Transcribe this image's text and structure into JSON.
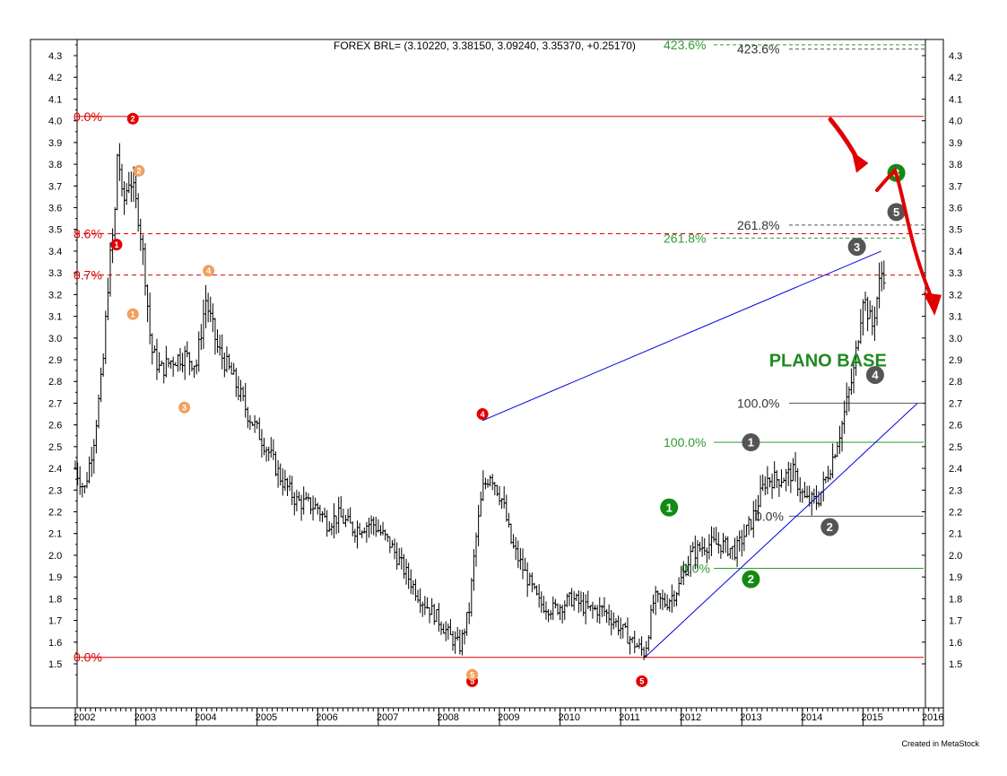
{
  "chart_data": {
    "type": "bar",
    "subtype": "ohlc",
    "title": "FOREX BRL= (3.10220, 3.38150, 3.09240, 3.35370, +0.25170)",
    "xlabel": "",
    "ylabel": "",
    "xlim": [
      2002.0,
      2016.3
    ],
    "ylim": [
      1.38,
      4.38
    ],
    "y_ticks": [
      "4.3",
      "4.2",
      "4.1",
      "4.0",
      "3.9",
      "3.8",
      "3.7",
      "3.6",
      "3.5",
      "3.4",
      "3.3",
      "3.2",
      "3.1",
      "3.0",
      "2.9",
      "2.8",
      "2.7",
      "2.6",
      "2.5",
      "2.4",
      "2.3",
      "2.2",
      "2.1",
      "2.0",
      "1.9",
      "1.8",
      "1.7",
      "1.6",
      "1.5"
    ],
    "x_ticks": [
      "2002",
      "2003",
      "2004",
      "2005",
      "2006",
      "2007",
      "2008",
      "2009",
      "2010",
      "2011",
      "2012",
      "2013",
      "2014",
      "2015",
      "2016"
    ],
    "grid": false,
    "series": [
      {
        "type": "ohlc_anchors",
        "points": [
          [
            2002.0,
            2.4
          ],
          [
            2002.15,
            2.3
          ],
          [
            2002.3,
            2.52
          ],
          [
            2002.45,
            2.85
          ],
          [
            2002.55,
            3.3
          ],
          [
            2002.65,
            3.55
          ],
          [
            2002.7,
            3.9
          ],
          [
            2002.78,
            3.6
          ],
          [
            2002.9,
            3.75
          ],
          [
            2003.05,
            3.55
          ],
          [
            2003.15,
            3.3
          ],
          [
            2003.25,
            2.95
          ],
          [
            2003.4,
            2.85
          ],
          [
            2003.6,
            2.9
          ],
          [
            2003.8,
            2.92
          ],
          [
            2004.0,
            2.88
          ],
          [
            2004.15,
            3.18
          ],
          [
            2004.35,
            2.95
          ],
          [
            2004.6,
            2.82
          ],
          [
            2004.85,
            2.65
          ],
          [
            2005.15,
            2.5
          ],
          [
            2005.4,
            2.35
          ],
          [
            2005.65,
            2.25
          ],
          [
            2006.0,
            2.22
          ],
          [
            2006.15,
            2.15
          ],
          [
            2006.35,
            2.18
          ],
          [
            2006.6,
            2.12
          ],
          [
            2006.9,
            2.15
          ],
          [
            2007.2,
            2.05
          ],
          [
            2007.45,
            1.92
          ],
          [
            2007.7,
            1.8
          ],
          [
            2007.95,
            1.72
          ],
          [
            2008.2,
            1.62
          ],
          [
            2008.35,
            1.58
          ],
          [
            2008.5,
            1.75
          ],
          [
            2008.6,
            2.05
          ],
          [
            2008.72,
            2.3
          ],
          [
            2008.85,
            2.38
          ],
          [
            2009.05,
            2.25
          ],
          [
            2009.2,
            2.05
          ],
          [
            2009.45,
            1.9
          ],
          [
            2009.65,
            1.78
          ],
          [
            2009.9,
            1.75
          ],
          [
            2010.2,
            1.8
          ],
          [
            2010.45,
            1.75
          ],
          [
            2010.7,
            1.75
          ],
          [
            2010.95,
            1.68
          ],
          [
            2011.2,
            1.6
          ],
          [
            2011.4,
            1.55
          ],
          [
            2011.55,
            1.8
          ],
          [
            2011.75,
            1.78
          ],
          [
            2011.95,
            1.85
          ],
          [
            2012.15,
            2.0
          ],
          [
            2012.4,
            2.05
          ],
          [
            2012.65,
            2.05
          ],
          [
            2012.9,
            2.02
          ],
          [
            2013.15,
            2.15
          ],
          [
            2013.4,
            2.35
          ],
          [
            2013.6,
            2.35
          ],
          [
            2013.85,
            2.38
          ],
          [
            2014.05,
            2.25
          ],
          [
            2014.25,
            2.25
          ],
          [
            2014.45,
            2.4
          ],
          [
            2014.65,
            2.6
          ],
          [
            2014.85,
            2.85
          ],
          [
            2015.0,
            3.2
          ],
          [
            2015.15,
            3.05
          ],
          [
            2015.3,
            3.3
          ]
        ]
      }
    ],
    "fibonacci": [
      {
        "label": "0.0%",
        "value": 4.02,
        "color": "#e00000",
        "style": "solid"
      },
      {
        "label": "8.6%",
        "value": 3.48,
        "color": "#e00000",
        "style": "dashed"
      },
      {
        "label": "0.7%",
        "value": 3.29,
        "color": "#e00000",
        "style": "dashed"
      },
      {
        "label": "0.0%",
        "value": 1.53,
        "color": "#e00000",
        "style": "solid"
      },
      {
        "label": "423.6%",
        "value": 4.35,
        "color": "#2e9a2e",
        "style": "dashed"
      },
      {
        "label": "261.8%",
        "value": 3.46,
        "color": "#2e9a2e",
        "style": "dashed"
      },
      {
        "label": "100.0%",
        "value": 2.52,
        "color": "#2e9a2e",
        "style": "solid"
      },
      {
        "label": "0.0%",
        "value": 1.94,
        "color": "#2e9a2e",
        "style": "solid"
      },
      {
        "label": "423.6%",
        "value": 4.33,
        "color": "#555555",
        "style": "dashed"
      },
      {
        "label": "261.8%",
        "value": 3.52,
        "color": "#555555",
        "style": "dashed"
      },
      {
        "label": "100.0%",
        "value": 2.7,
        "color": "#555555",
        "style": "solid"
      },
      {
        "label": "0.0%",
        "value": 2.18,
        "color": "#555555",
        "style": "solid"
      }
    ],
    "trendlines": [
      {
        "from": [
          2008.72,
          2.62
        ],
        "to": [
          2015.3,
          3.4
        ],
        "color": "#0000dd"
      },
      {
        "from": [
          2011.4,
          1.53
        ],
        "to": [
          2015.9,
          2.7
        ],
        "color": "#0000dd"
      }
    ],
    "wave_labels": [
      {
        "label": "1",
        "x": 2002.68,
        "y": 3.43,
        "color": "#e00000"
      },
      {
        "label": "2",
        "x": 2002.95,
        "y": 4.01,
        "color": "#e00000"
      },
      {
        "label": "4",
        "x": 2008.72,
        "y": 2.65,
        "color": "#e00000"
      },
      {
        "label": "5",
        "x": 2008.55,
        "y": 1.42,
        "color": "#e00000"
      },
      {
        "label": "5",
        "x": 2011.35,
        "y": 1.42,
        "color": "#e00000"
      },
      {
        "label": "1",
        "x": 2002.95,
        "y": 3.11,
        "color": "#f0a060"
      },
      {
        "label": "2",
        "x": 2003.05,
        "y": 3.77,
        "color": "#f0a060"
      },
      {
        "label": "3",
        "x": 2003.8,
        "y": 2.68,
        "color": "#f0a060"
      },
      {
        "label": "4",
        "x": 2004.2,
        "y": 3.31,
        "color": "#f0a060"
      },
      {
        "label": "5",
        "x": 2008.55,
        "y": 1.45,
        "color": "#f0a060"
      },
      {
        "label": "1",
        "x": 2011.8,
        "y": 2.22,
        "color": "#138a13"
      },
      {
        "label": "2",
        "x": 2013.15,
        "y": 1.89,
        "color": "#138a13"
      },
      {
        "label": "3",
        "x": 2015.55,
        "y": 3.76,
        "color": "#138a13"
      },
      {
        "label": "1",
        "x": 2013.15,
        "y": 2.52,
        "color": "#555555"
      },
      {
        "label": "2",
        "x": 2014.45,
        "y": 2.13,
        "color": "#555555"
      },
      {
        "label": "3",
        "x": 2014.9,
        "y": 3.42,
        "color": "#555555"
      },
      {
        "label": "4",
        "x": 2015.2,
        "y": 2.83,
        "color": "#555555"
      },
      {
        "label": "5",
        "x": 2015.55,
        "y": 3.58,
        "color": "#555555"
      }
    ],
    "annotation": {
      "text": "PLANO BASE",
      "x": 2013.45,
      "y": 2.87
    },
    "forecast": {
      "color": "#e00000"
    }
  },
  "footer": "Created in MetaStock"
}
